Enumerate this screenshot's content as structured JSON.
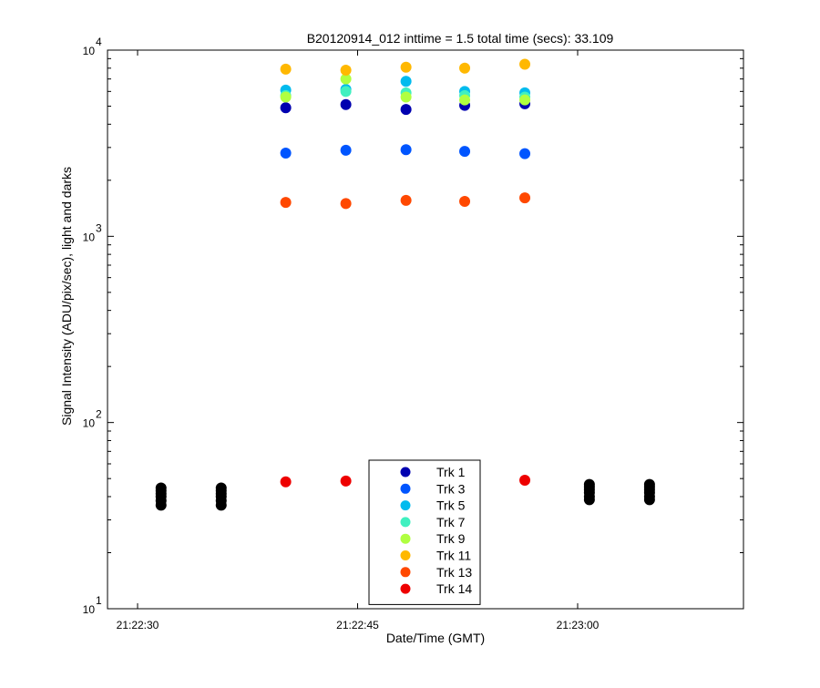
{
  "chart_data": {
    "type": "scatter",
    "title": "B20120914_012 inttime = 1.5 total time (secs): 33.109",
    "xlabel": "Date/Time (GMT)",
    "ylabel": "Signal Intensity (ADU/pix/sec), light and darks",
    "x_scale": "time",
    "y_scale": "log",
    "xlim": [
      "21:22:30",
      "21:23:00"
    ],
    "ylim": [
      10,
      10000
    ],
    "x_ticks": [
      "21:22:30",
      "21:22:45",
      "21:23:00"
    ],
    "y_ticks": [
      {
        "value": 10,
        "base": "10",
        "exp": "1"
      },
      {
        "value": 100,
        "base": "10",
        "exp": "2"
      },
      {
        "value": 1000,
        "base": "10",
        "exp": "3"
      },
      {
        "value": 10000,
        "base": "10",
        "exp": "4"
      }
    ],
    "grid": false,
    "legend_position": "bottom-center",
    "series": [
      {
        "name": "Trk 1",
        "color": "#0000b0",
        "points": [
          [
            "21:22:40.1",
            4900
          ],
          [
            "21:22:44.2",
            5100
          ],
          [
            "21:22:48.3",
            4800
          ],
          [
            "21:22:52.3",
            5050
          ],
          [
            "21:22:56.4",
            5150
          ]
        ]
      },
      {
        "name": "Trk 3",
        "color": "#0055ff",
        "points": [
          [
            "21:22:40.1",
            2800
          ],
          [
            "21:22:44.2",
            2900
          ],
          [
            "21:22:48.3",
            2920
          ],
          [
            "21:22:52.3",
            2860
          ],
          [
            "21:22:56.4",
            2780
          ]
        ]
      },
      {
        "name": "Trk 5",
        "color": "#00bbee",
        "points": [
          [
            "21:22:40.1",
            6100
          ],
          [
            "21:22:44.2",
            6150
          ],
          [
            "21:22:48.3",
            6800
          ],
          [
            "21:22:52.3",
            6000
          ],
          [
            "21:22:56.4",
            5900
          ]
        ]
      },
      {
        "name": "Trk 7",
        "color": "#40f0c0",
        "points": [
          [
            "21:22:40.1",
            5700
          ],
          [
            "21:22:44.2",
            6000
          ],
          [
            "21:22:48.3",
            5900
          ],
          [
            "21:22:52.3",
            5700
          ],
          [
            "21:22:56.4",
            5600
          ]
        ]
      },
      {
        "name": "Trk 9",
        "color": "#b0ff40",
        "points": [
          [
            "21:22:40.1",
            5600
          ],
          [
            "21:22:44.2",
            7000
          ],
          [
            "21:22:48.3",
            5600
          ],
          [
            "21:22:52.3",
            5400
          ],
          [
            "21:22:56.4",
            5400
          ]
        ]
      },
      {
        "name": "Trk 11",
        "color": "#ffb800",
        "points": [
          [
            "21:22:40.1",
            7900
          ],
          [
            "21:22:44.2",
            7800
          ],
          [
            "21:22:48.3",
            8100
          ],
          [
            "21:22:52.3",
            8000
          ],
          [
            "21:22:56.4",
            8400
          ]
        ]
      },
      {
        "name": "Trk 13",
        "color": "#ff4800",
        "points": [
          [
            "21:22:40.1",
            1520
          ],
          [
            "21:22:44.2",
            1500
          ],
          [
            "21:22:48.3",
            1560
          ],
          [
            "21:22:52.3",
            1540
          ],
          [
            "21:22:56.4",
            1610
          ]
        ]
      },
      {
        "name": "Trk 14",
        "color": "#ee0000",
        "points": [
          [
            "21:22:40.1",
            48
          ],
          [
            "21:22:44.2",
            48.5
          ],
          [
            "21:22:56.4",
            49
          ]
        ]
      },
      {
        "color": "#000000",
        "points": [
          [
            "21:22:31.6",
            36
          ],
          [
            "21:22:31.6",
            38
          ],
          [
            "21:22:31.6",
            40
          ],
          [
            "21:22:31.6",
            41.5
          ],
          [
            "21:22:31.6",
            43
          ],
          [
            "21:22:31.6",
            44.5
          ],
          [
            "21:22:35.7",
            36
          ],
          [
            "21:22:35.7",
            38
          ],
          [
            "21:22:35.7",
            40
          ],
          [
            "21:22:35.7",
            41.5
          ],
          [
            "21:22:35.7",
            43
          ],
          [
            "21:22:35.7",
            44.5
          ],
          [
            "21:23:00.8",
            38.5
          ],
          [
            "21:23:00.8",
            40
          ],
          [
            "21:23:00.8",
            42
          ],
          [
            "21:23:00.8",
            43.5
          ],
          [
            "21:23:00.8",
            45
          ],
          [
            "21:23:00.8",
            46.5
          ],
          [
            "21:23:04.9",
            38.5
          ],
          [
            "21:23:04.9",
            40
          ],
          [
            "21:23:04.9",
            42
          ],
          [
            "21:23:04.9",
            43.5
          ],
          [
            "21:23:04.9",
            45
          ],
          [
            "21:23:04.9",
            46.5
          ]
        ]
      }
    ]
  }
}
